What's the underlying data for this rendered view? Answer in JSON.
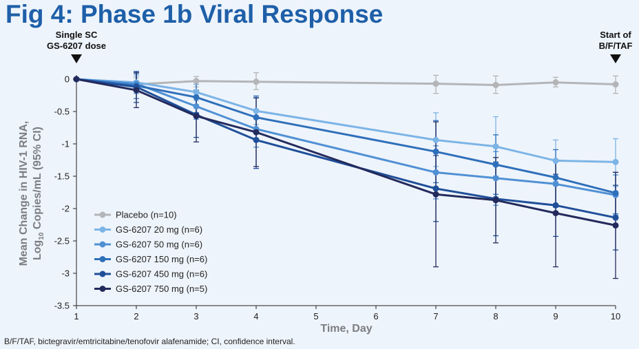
{
  "page": {
    "title": "Fig 4: Phase 1b Viral Response",
    "footnote": "B/F/TAF, bictegravir/emtricitabine/tenofovir alafenamide; CI, confidence interval."
  },
  "annotations": {
    "left_line1": "Single SC",
    "left_line2": "GS-6207 dose",
    "right_line1": "Start of",
    "right_line2": "B/F/TAF"
  },
  "chart_data": {
    "type": "line",
    "xlabel": "Time, Day",
    "ylabel_line1": "Mean Change in HIV-1 RNA,",
    "ylabel_line2_pre": "Log",
    "ylabel_line2_sub": "10",
    "ylabel_line2_post": " Copies/mL (95% CI)",
    "xlim": [
      1,
      10
    ],
    "ylim": [
      -3.5,
      0
    ],
    "xticks": [
      1,
      2,
      3,
      4,
      5,
      6,
      7,
      8,
      9,
      10
    ],
    "yticks": [
      0,
      -0.5,
      -1,
      -1.5,
      -2,
      -2.5,
      -3,
      -3.5
    ],
    "ytick_labels": [
      "0",
      "-0.5",
      "-1",
      "-1.5",
      "-2",
      "-2.5",
      "-3",
      "-3.5"
    ],
    "legend_position": "bottom-left",
    "colors": {
      "placebo": "#b3b5b8",
      "mg20": "#7cb4e6",
      "mg50": "#4f90d4",
      "mg150": "#2e6fba",
      "mg450": "#1f4f99",
      "mg750": "#232a5c"
    },
    "series": [
      {
        "name": "Placebo (n=10)",
        "color": "#b3b5b8",
        "x": [
          1,
          2,
          3,
          4,
          7,
          8,
          9,
          10
        ],
        "y": [
          0,
          -0.08,
          -0.03,
          -0.04,
          -0.07,
          -0.09,
          -0.05,
          -0.08
        ],
        "ci_low": [
          0,
          -0.18,
          -0.12,
          -0.16,
          -0.22,
          -0.22,
          -0.12,
          -0.22
        ],
        "ci_high": [
          0,
          0.02,
          0.04,
          0.1,
          0.06,
          0.05,
          0.03,
          0.05
        ]
      },
      {
        "name": "GS-6207 20 mg (n=6)",
        "color": "#7cb4e6",
        "x": [
          1,
          2,
          3,
          4,
          7,
          8,
          9,
          10
        ],
        "y": [
          0,
          -0.05,
          -0.2,
          -0.49,
          -0.94,
          -1.04,
          -1.26,
          -1.28
        ],
        "ci_low": [
          0,
          -0.15,
          -0.33,
          -0.7,
          -1.35,
          -1.5,
          -1.58,
          -1.66
        ],
        "ci_high": [
          0,
          0.05,
          -0.08,
          -0.28,
          -0.52,
          -0.58,
          -0.94,
          -0.92
        ]
      },
      {
        "name": "GS-6207 50 mg (n=6)",
        "color": "#4f90d4",
        "x": [
          1,
          2,
          3,
          4,
          7,
          8,
          9,
          10
        ],
        "y": [
          0,
          -0.07,
          -0.42,
          -0.77,
          -1.44,
          -1.53,
          -1.62,
          -1.79
        ],
        "ci_low": [
          0,
          -0.22,
          -0.62,
          -1.05,
          -1.85,
          -1.95,
          -1.98,
          -2.1
        ],
        "ci_high": [
          0,
          0.08,
          -0.22,
          -0.5,
          -1.03,
          -1.12,
          -1.26,
          -1.48
        ]
      },
      {
        "name": "GS-6207 150 mg (n=6)",
        "color": "#2e6fba",
        "x": [
          1,
          2,
          3,
          4,
          7,
          8,
          9,
          10
        ],
        "y": [
          0,
          -0.1,
          -0.28,
          -0.59,
          -1.12,
          -1.32,
          -1.52,
          -1.76
        ],
        "ci_low": [
          0,
          -0.3,
          -0.52,
          -0.92,
          -1.6,
          -1.78,
          -1.95,
          -2.08
        ],
        "ci_high": [
          0,
          0.1,
          -0.04,
          -0.26,
          -0.64,
          -0.86,
          -1.09,
          -1.44
        ]
      },
      {
        "name": "GS-6207 450 mg (n=6)",
        "color": "#1f4f99",
        "x": [
          1,
          2,
          3,
          4,
          7,
          8,
          9,
          10
        ],
        "y": [
          0,
          -0.12,
          -0.55,
          -0.94,
          -1.69,
          -1.85,
          -1.95,
          -2.14
        ],
        "ci_low": [
          0,
          -0.36,
          -0.9,
          -1.38,
          -2.2,
          -2.42,
          -2.43,
          -2.64
        ],
        "ci_high": [
          0,
          0.12,
          -0.2,
          -0.5,
          -1.18,
          -1.28,
          -1.47,
          -1.64
        ]
      },
      {
        "name": "GS-6207 750 mg (n=5)",
        "color": "#232a5c",
        "x": [
          1,
          2,
          3,
          4,
          7,
          8,
          9,
          10
        ],
        "y": [
          0,
          -0.17,
          -0.57,
          -0.82,
          -1.78,
          -1.87,
          -2.07,
          -2.26
        ],
        "ci_low": [
          0,
          -0.44,
          -0.97,
          -1.35,
          -2.9,
          -2.53,
          -2.9,
          -3.08
        ],
        "ci_high": [
          0,
          0.1,
          -0.17,
          -0.29,
          -0.66,
          -1.21,
          -1.24,
          -1.44
        ]
      }
    ]
  }
}
